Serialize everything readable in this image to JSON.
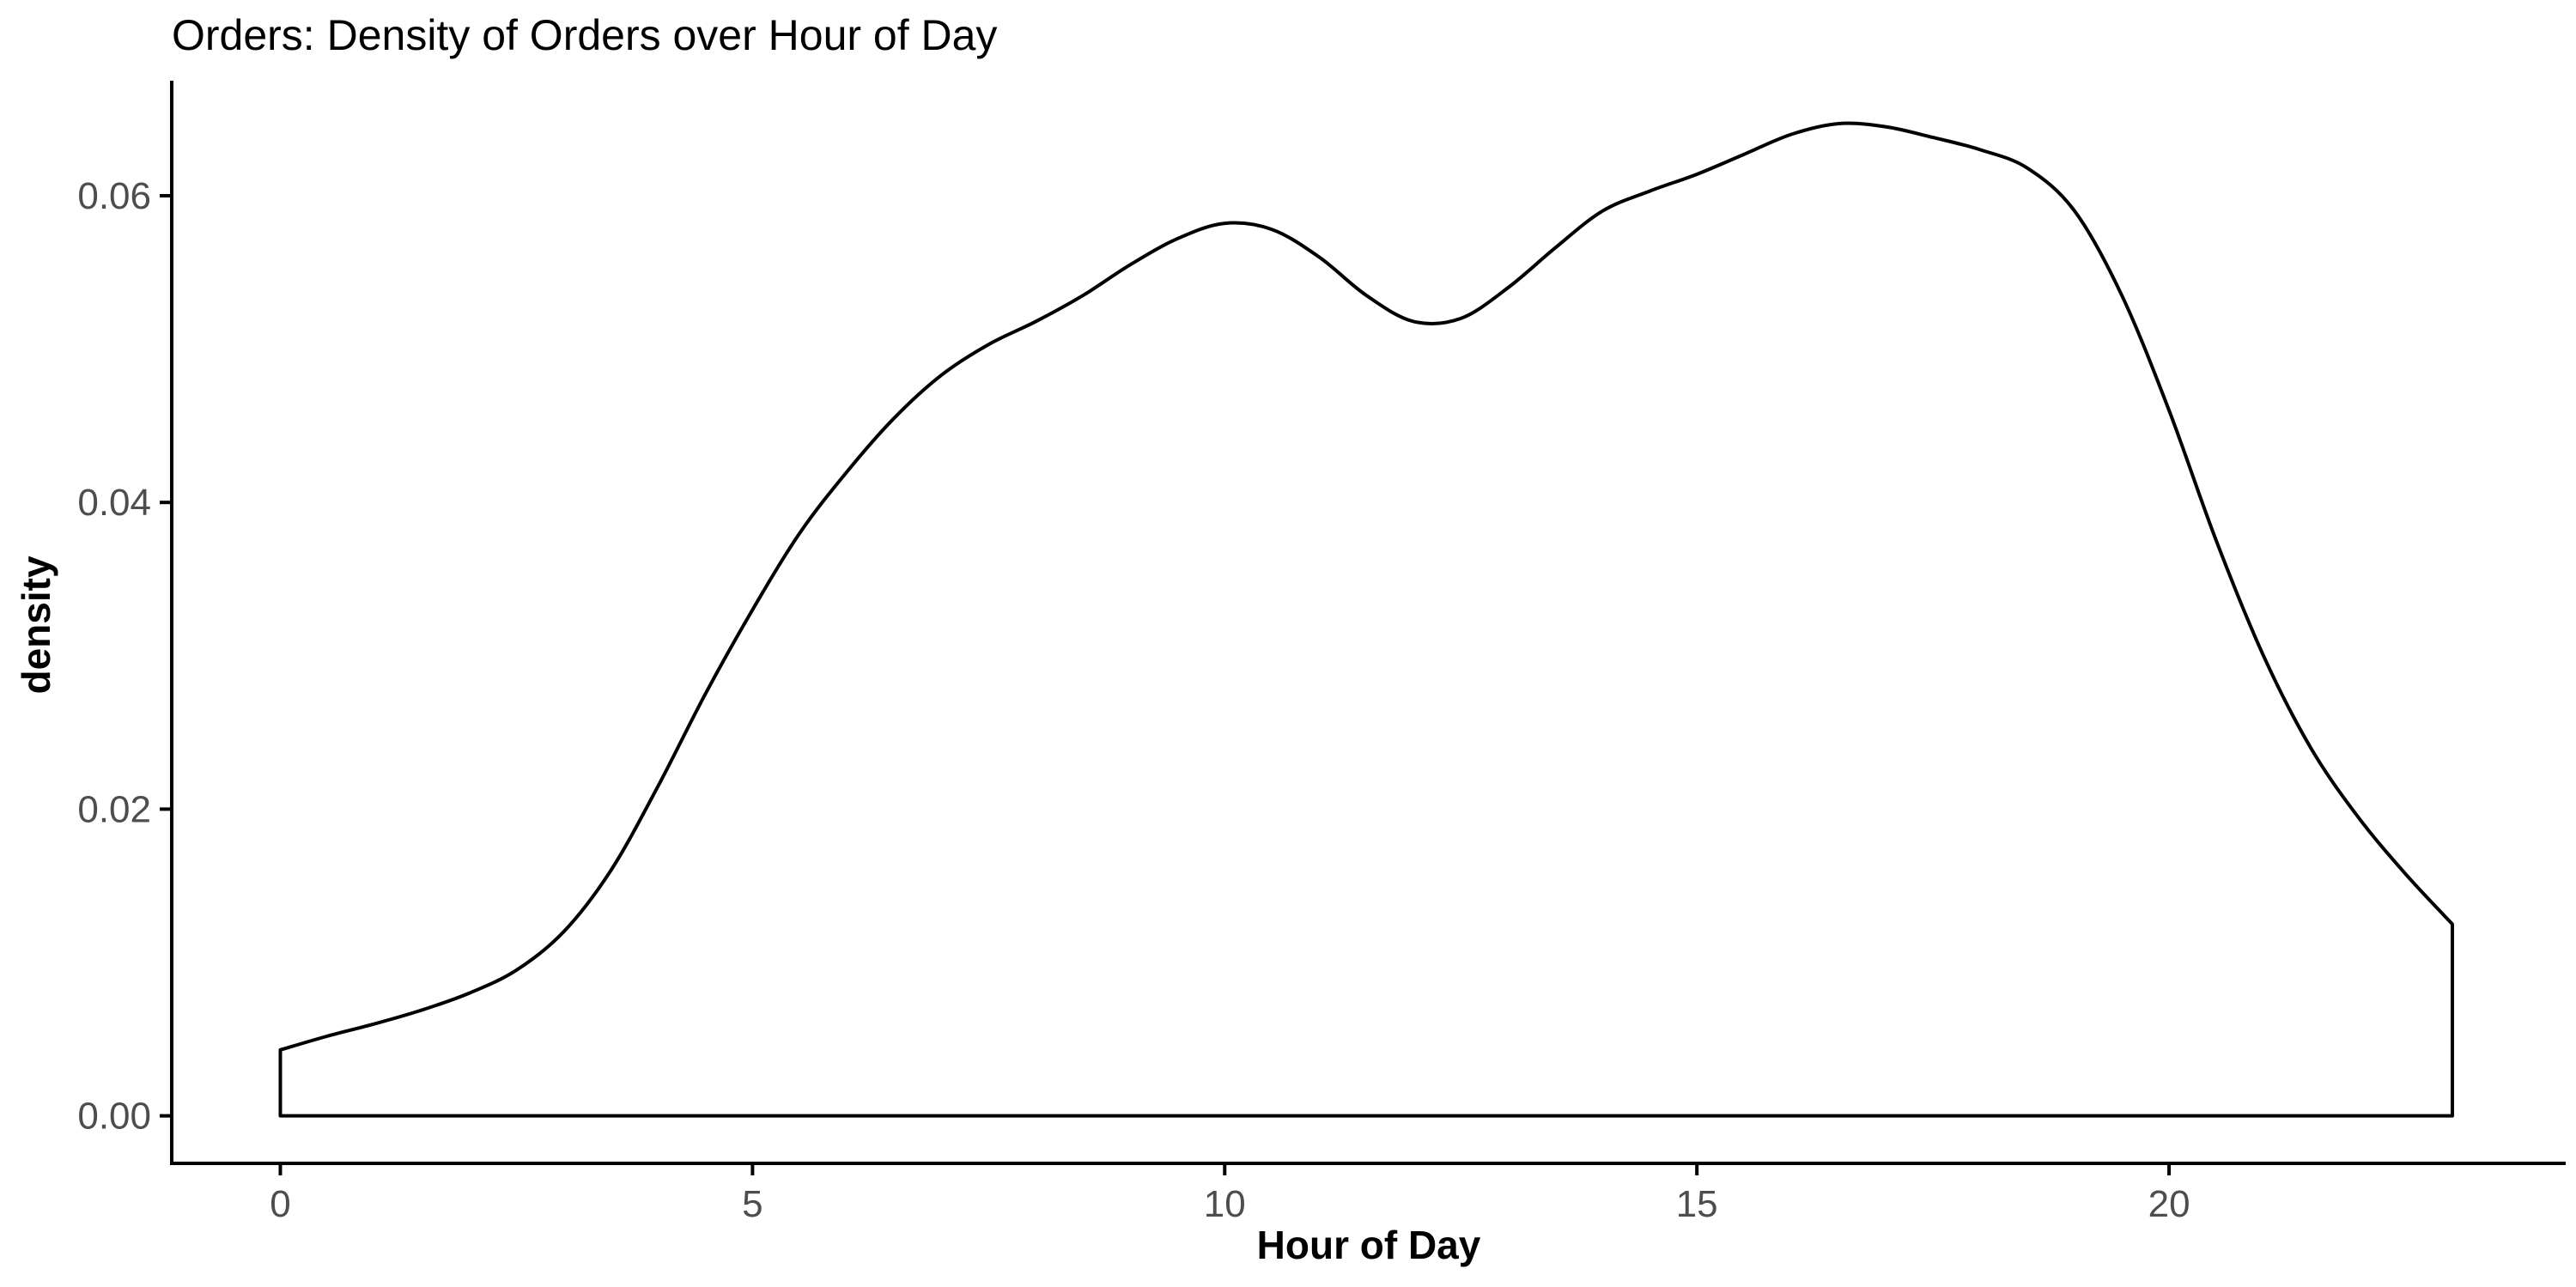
{
  "chart_data": {
    "type": "area",
    "title": "Orders: Density of Orders over Hour of Day",
    "xlabel": "Hour of Day",
    "ylabel": "density",
    "xlim": [
      -1.15,
      24.2
    ],
    "ylim": [
      -0.0031,
      0.0675
    ],
    "x_ticks": [
      0,
      5,
      10,
      15,
      20
    ],
    "x_tick_labels": [
      "0",
      "5",
      "10",
      "15",
      "20"
    ],
    "y_ticks": [
      0,
      0.02,
      0.04,
      0.06
    ],
    "y_tick_labels": [
      "0.00",
      "0.02",
      "0.04",
      "0.06"
    ],
    "grid": false,
    "legend": "none",
    "fill": "none",
    "line_color": "#000000",
    "series": [
      {
        "x": [
          0,
          0.5,
          1,
          1.5,
          2,
          2.5,
          3,
          3.5,
          4,
          4.5,
          5,
          5.5,
          6,
          6.5,
          7,
          7.5,
          8,
          8.5,
          9,
          9.5,
          10,
          10.5,
          11,
          11.5,
          12,
          12.5,
          13,
          13.5,
          14,
          14.5,
          15,
          15.5,
          16,
          16.5,
          17,
          17.5,
          18,
          18.5,
          19,
          19.5,
          20,
          20.5,
          21,
          21.5,
          22,
          22.5,
          23
        ],
        "y": [
          0.0043,
          0.0052,
          0.006,
          0.0069,
          0.008,
          0.0095,
          0.012,
          0.016,
          0.0215,
          0.0275,
          0.033,
          0.038,
          0.042,
          0.0455,
          0.0483,
          0.0503,
          0.0518,
          0.0535,
          0.0555,
          0.0572,
          0.0582,
          0.0578,
          0.056,
          0.0535,
          0.0518,
          0.052,
          0.054,
          0.0566,
          0.059,
          0.0603,
          0.0614,
          0.0627,
          0.064,
          0.0647,
          0.0645,
          0.0638,
          0.063,
          0.0618,
          0.059,
          0.0535,
          0.046,
          0.0375,
          0.03,
          0.024,
          0.0195,
          0.0158,
          0.0125
        ]
      }
    ]
  }
}
